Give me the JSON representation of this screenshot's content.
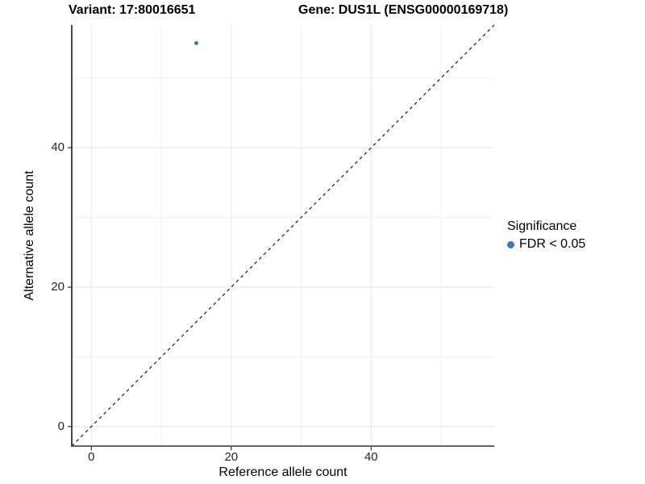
{
  "titles": {
    "variant": "Variant: 17:80016651",
    "gene": "Gene: DUS1L (ENSG00000169718)"
  },
  "axes": {
    "x": {
      "label": "Reference allele count",
      "ticks": [
        "0",
        "20",
        "40"
      ]
    },
    "y": {
      "label": "Alternative allele count",
      "ticks": [
        "0",
        "20",
        "40"
      ]
    }
  },
  "legend": {
    "title": "Significance",
    "items": [
      {
        "label": "FDR < 0.05",
        "color": "#4575B4"
      }
    ]
  },
  "chart_data": {
    "type": "scatter",
    "title": "Variant: 17:80016651 | Gene: DUS1L (ENSG00000169718)",
    "xlabel": "Reference allele count",
    "ylabel": "Alternative allele count",
    "xlim": [
      -2.8,
      57.6
    ],
    "ylim": [
      -2.8,
      57.6
    ],
    "x_ticks": [
      0,
      20,
      40
    ],
    "y_ticks": [
      0,
      20,
      40
    ],
    "grid": {
      "major": [
        0,
        20,
        40
      ],
      "minor": [
        10,
        30,
        50
      ]
    },
    "points": [
      {
        "x": 15,
        "y": 55,
        "significance": "FDR < 0.05",
        "color": "#4575B4"
      }
    ],
    "reference_line": {
      "kind": "identity y=x",
      "style": "dashed",
      "color": "#1a1a1a"
    },
    "legend_position": "right",
    "background": "#ffffff"
  }
}
